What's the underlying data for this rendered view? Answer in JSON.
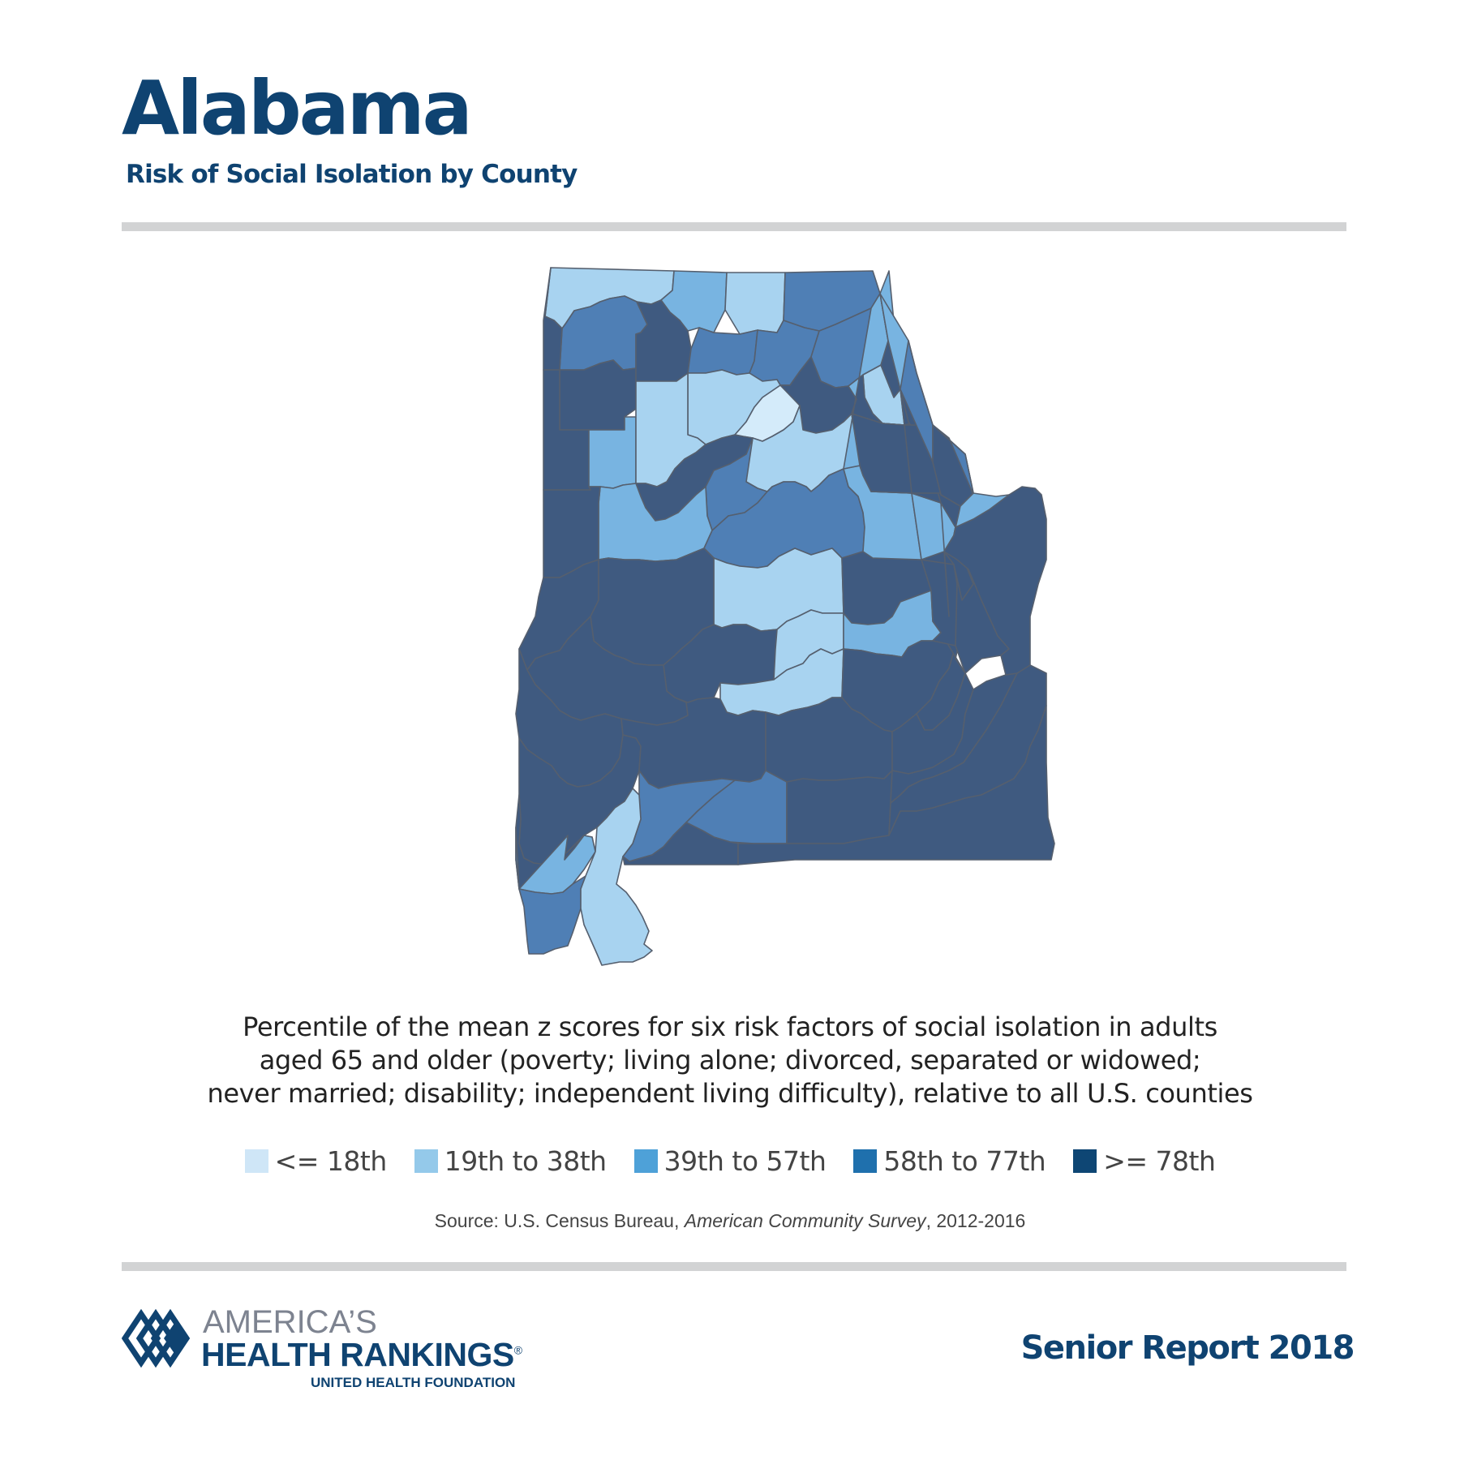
{
  "header": {
    "title": "Alabama",
    "subtitle": "Risk of Social Isolation by County"
  },
  "description": {
    "lines": [
      "Percentile of the mean z scores for six risk factors of social isolation in adults",
      "aged 65 and older (poverty; living alone; divorced, separated or widowed;",
      "never married; disability; independent living difficulty), relative to all U.S. counties"
    ]
  },
  "legend": {
    "items": [
      {
        "label": "<= 18th",
        "color": "#cfe6f7"
      },
      {
        "label": "19th to 38th",
        "color": "#94c9ea"
      },
      {
        "label": "39th to 57th",
        "color": "#4ea1d8"
      },
      {
        "label": "58th to 77th",
        "color": "#1f70ad"
      },
      {
        "label": ">= 78th",
        "color": "#0e4674"
      }
    ]
  },
  "map_fill_colors": {
    "<= 18th": "#d4ebfa",
    "19th to 38th": "#a8d3f0",
    "39th to 57th": "#78b4e1",
    "58th to 77th": "#4f7fb5",
    ">= 78th": "#3f5a80"
  },
  "source": {
    "prefix": "Source: U.S. Census Bureau, ",
    "publication": "American Community Survey",
    "suffix": ", 2012-2016"
  },
  "logo": {
    "line1": "AMERICA’S",
    "line2": "HEALTH RANKINGS",
    "line3": "UNITED HEALTH FOUNDATION",
    "registered": "®"
  },
  "report": "Senior Report 2018",
  "colors": {
    "brand_navy": "#0f4371",
    "rule_gray": "#d2d3d4",
    "map_stroke": "#555f6e",
    "logo_gray": "#7d8390"
  }
}
